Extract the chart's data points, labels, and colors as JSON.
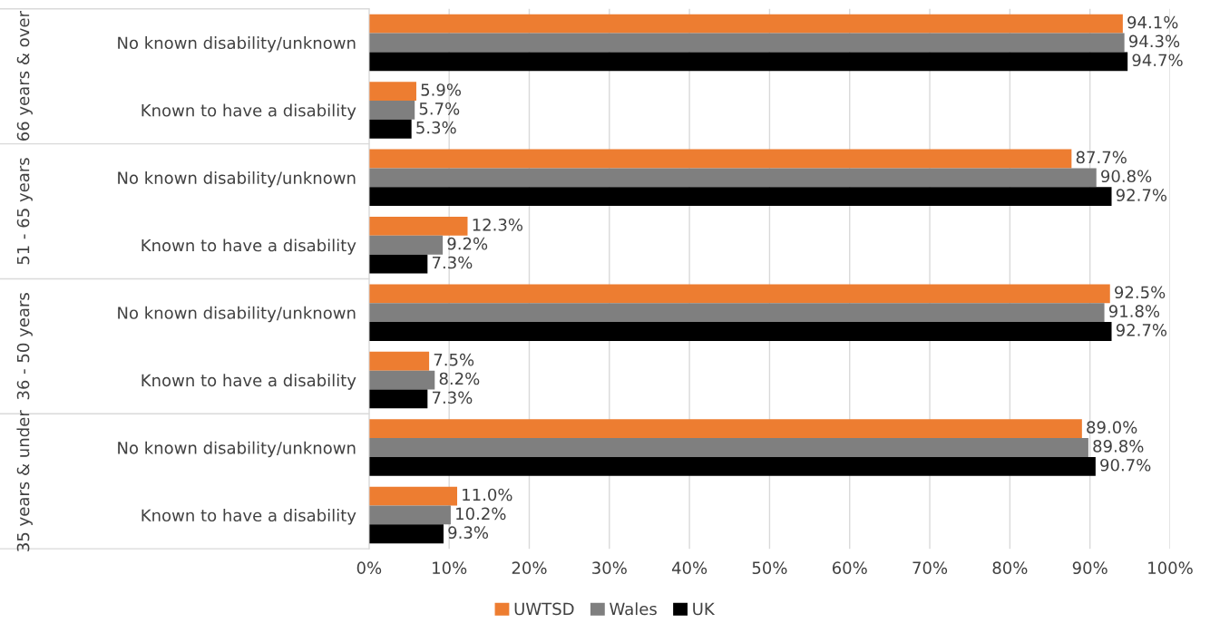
{
  "chart_data": {
    "type": "bar",
    "orientation": "horizontal",
    "categories": [
      "No known disability/unknown",
      "Known to have a disability",
      "No known disability/unknown",
      "Known to have a disability",
      "No known disability/unknown",
      "Known to have a disability",
      "No known disability/unknown",
      "Known to have a disability"
    ],
    "annotations": [
      "66 years & over",
      "51 - 65 years",
      "36 - 50 years",
      "35 years & under"
    ],
    "series": [
      {
        "name": "UWTSD",
        "color": "#ed7d31",
        "values": [
          94.1,
          5.9,
          87.7,
          12.3,
          92.5,
          7.5,
          89.0,
          11.0
        ],
        "value_labels": [
          "94.1%",
          "5.9%",
          "87.7%",
          "12.3%",
          "92.5%",
          "7.5%",
          "89.0%",
          "11.0%"
        ]
      },
      {
        "name": "Wales",
        "color": "#7f7f7f",
        "values": [
          94.3,
          5.7,
          90.8,
          9.2,
          91.8,
          8.2,
          89.8,
          10.2
        ],
        "value_labels": [
          "94.3%",
          "5.7%",
          "90.8%",
          "9.2%",
          "91.8%",
          "8.2%",
          "89.8%",
          "10.2%"
        ]
      },
      {
        "name": "UK",
        "color": "#000000",
        "values": [
          94.7,
          5.3,
          92.7,
          7.3,
          92.7,
          7.3,
          90.7,
          9.3
        ],
        "value_labels": [
          "94.7%",
          "5.3%",
          "92.7%",
          "7.3%",
          "92.7%",
          "7.3%",
          "90.7%",
          "9.3%"
        ]
      }
    ],
    "xlim": [
      0,
      100
    ],
    "xticks": [
      {
        "value": 0,
        "label": "0%"
      },
      {
        "value": 10,
        "label": "10%"
      },
      {
        "value": 20,
        "label": "20%"
      },
      {
        "value": 30,
        "label": "30%"
      },
      {
        "value": 40,
        "label": "40%"
      },
      {
        "value": 50,
        "label": "50%"
      },
      {
        "value": 60,
        "label": "60%"
      },
      {
        "value": 70,
        "label": "70%"
      },
      {
        "value": 80,
        "label": "80%"
      },
      {
        "value": 90,
        "label": "90%"
      },
      {
        "value": 100,
        "label": "100%"
      }
    ],
    "grid": "x",
    "legend": "bottom"
  }
}
